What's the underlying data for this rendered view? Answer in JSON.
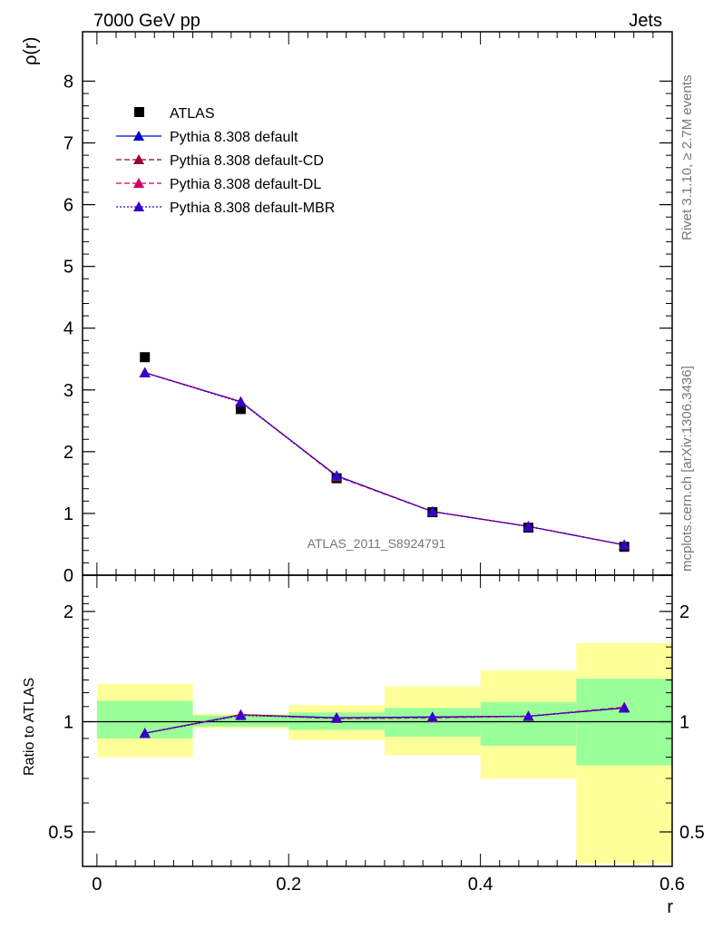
{
  "header": {
    "left": "7000 GeV pp",
    "right": "Jets"
  },
  "side": {
    "rivet": "Rivet 3.1.10, ≥ 2.7M events",
    "mcplots": "mcplots.cern.ch [arXiv:1306.3436]"
  },
  "watermark": "ATLAS_2011_S8924791",
  "chart_data": [
    {
      "type": "scatter",
      "ylabel": "ρ(r)",
      "xlabel": "r",
      "xlim": [
        -0.015,
        0.6
      ],
      "ylim": [
        0,
        8.8
      ],
      "x_ticks": [
        "0",
        "0.2",
        "0.4",
        "0.6"
      ],
      "y_ticks": [
        "0",
        "1",
        "2",
        "3",
        "4",
        "5",
        "6",
        "7",
        "8"
      ],
      "x": [
        0.05,
        0.15,
        0.25,
        0.35,
        0.45,
        0.55
      ],
      "series": [
        {
          "name": "ATLAS",
          "values": [
            3.53,
            2.69,
            1.57,
            1.02,
            0.77,
            0.46
          ],
          "color": "#000000",
          "marker": "square"
        },
        {
          "name": "Pythia 8.308 default",
          "values": [
            3.28,
            2.81,
            1.61,
            1.03,
            0.79,
            0.49
          ],
          "color": "#0000cc",
          "line": "solid",
          "marker": "triangle"
        },
        {
          "name": "Pythia 8.308 default-CD",
          "values": [
            3.28,
            2.81,
            1.6,
            1.03,
            0.79,
            0.49
          ],
          "color": "#990033",
          "line": "dashed",
          "marker": "triangle"
        },
        {
          "name": "Pythia 8.308 default-DL",
          "values": [
            3.28,
            2.81,
            1.6,
            1.03,
            0.79,
            0.49
          ],
          "color": "#cc0066",
          "line": "dashed",
          "marker": "triangle"
        },
        {
          "name": "Pythia 8.308 default-MBR",
          "values": [
            3.28,
            2.8,
            1.61,
            1.03,
            0.79,
            0.49
          ],
          "color": "#3300cc",
          "line": "dotted",
          "marker": "triangle"
        }
      ],
      "legend_position": "top-left",
      "grid": false
    },
    {
      "type": "scatter",
      "ylabel": "Ratio to ATLAS",
      "xlabel": "r",
      "xlim": [
        -0.015,
        0.6
      ],
      "ylim": [
        0.5,
        2.0
      ],
      "log_y": true,
      "y_ticks": [
        "0.5",
        "1",
        "2"
      ],
      "x_ticks": [
        "0",
        "0.2",
        "0.4",
        "0.6"
      ],
      "bins": [
        [
          0.0,
          0.1
        ],
        [
          0.1,
          0.2
        ],
        [
          0.2,
          0.3
        ],
        [
          0.3,
          0.4
        ],
        [
          0.4,
          0.5
        ],
        [
          0.5,
          0.6
        ]
      ],
      "band_inner": [
        [
          0.9,
          1.14
        ],
        [
          0.97,
          1.04
        ],
        [
          0.95,
          1.06
        ],
        [
          0.91,
          1.09
        ],
        [
          0.86,
          1.13
        ],
        [
          0.76,
          1.31
        ]
      ],
      "band_outer": [
        [
          0.8,
          1.27
        ],
        [
          0.96,
          1.05
        ],
        [
          0.89,
          1.11
        ],
        [
          0.81,
          1.25
        ],
        [
          0.7,
          1.38
        ],
        [
          0.41,
          1.64
        ]
      ],
      "band_inner_color": "#99ff99",
      "band_outer_color": "#ffff99",
      "reference": 1,
      "x": [
        0.05,
        0.15,
        0.25,
        0.35,
        0.45,
        0.55
      ],
      "series": [
        {
          "name": "Pythia 8.308 default",
          "values": [
            0.93,
            1.045,
            1.025,
            1.03,
            1.035,
            1.09
          ],
          "color": "#0000cc"
        },
        {
          "name": "Pythia 8.308 default-CD",
          "values": [
            0.93,
            1.045,
            1.02,
            1.025,
            1.035,
            1.095
          ],
          "color": "#990033"
        },
        {
          "name": "Pythia 8.308 default-DL",
          "values": [
            0.93,
            1.045,
            1.02,
            1.025,
            1.035,
            1.095
          ],
          "color": "#cc0066"
        },
        {
          "name": "Pythia 8.308 default-MBR",
          "values": [
            0.93,
            1.04,
            1.025,
            1.03,
            1.035,
            1.09
          ],
          "color": "#3300cc"
        }
      ]
    }
  ]
}
